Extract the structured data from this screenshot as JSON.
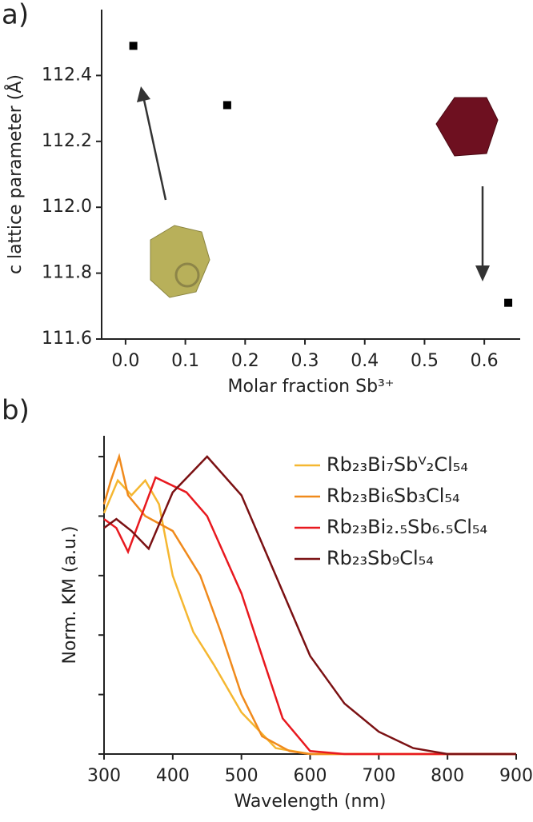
{
  "chart_data": [
    {
      "type": "scatter",
      "panel_label": "a)",
      "xlabel": "Molar fraction Sb³⁺",
      "ylabel": "c lattice parameter (Å)",
      "x": [
        0.013,
        0.17,
        0.64
      ],
      "values": [
        112.49,
        112.31,
        111.71
      ],
      "color": "#000000",
      "xlim": [
        -0.04,
        0.66
      ],
      "xticks": [
        {
          "value": 0,
          "label": "0.0"
        },
        0.1,
        0.2,
        0.3,
        0.4,
        0.5,
        0.6
      ],
      "ylim": [
        111.6,
        112.6
      ],
      "yticks": [
        111.6,
        111.8,
        {
          "value": 112,
          "label": "112.0"
        },
        112.2,
        112.4
      ]
    },
    {
      "type": "line",
      "panel_label": "b)",
      "xlabel": "Wavelength (nm)",
      "ylabel": "Norm. KM (a.u.)",
      "xlim": [
        300,
        900
      ],
      "xticks": [
        300,
        400,
        500,
        600,
        700,
        800,
        900
      ],
      "ylim": [
        0,
        1.07
      ],
      "yticks": [
        0,
        0.2,
        0.4,
        0.6,
        0.8,
        1.0
      ],
      "ytick_labels": false,
      "legend": "upper right",
      "series": [
        {
          "name": "Rb₂₃Bi₇Sbⱽ₂Cl₅₄",
          "color": "#f5b731",
          "x": [
            300,
            320,
            340,
            360,
            380,
            400,
            430,
            460,
            500,
            550,
            600,
            700,
            800,
            900
          ],
          "values": [
            0.81,
            0.92,
            0.87,
            0.92,
            0.84,
            0.6,
            0.41,
            0.3,
            0.14,
            0.02,
            0,
            0,
            0,
            0
          ]
        },
        {
          "name": "Rb₂₃Bi₆Sb₃Cl₅₄",
          "color": "#f08a1c",
          "x": [
            300,
            310,
            322,
            335,
            360,
            400,
            440,
            470,
            500,
            530,
            570,
            600,
            700,
            800,
            900
          ],
          "values": [
            0.84,
            0.92,
            1.0,
            0.87,
            0.8,
            0.75,
            0.6,
            0.41,
            0.2,
            0.06,
            0.01,
            0,
            0,
            0,
            0
          ]
        },
        {
          "name": "Rb₂₃Bi₂.₅Sb₆.₅Cl₅₄",
          "color": "#e8191f",
          "x": [
            300,
            318,
            335,
            375,
            420,
            450,
            500,
            530,
            560,
            600,
            650,
            700,
            800,
            900
          ],
          "values": [
            0.79,
            0.76,
            0.68,
            0.93,
            0.88,
            0.8,
            0.54,
            0.33,
            0.12,
            0.01,
            0,
            0,
            0,
            0
          ]
        },
        {
          "name": "Rb₂₃Sb₉Cl₅₄",
          "color": "#7b1113",
          "x": [
            300,
            318,
            340,
            365,
            400,
            450,
            500,
            550,
            600,
            650,
            700,
            750,
            800,
            900
          ],
          "values": [
            0.76,
            0.79,
            0.75,
            0.69,
            0.88,
            1.0,
            0.87,
            0.6,
            0.33,
            0.17,
            0.075,
            0.02,
            0,
            0
          ]
        }
      ]
    }
  ]
}
